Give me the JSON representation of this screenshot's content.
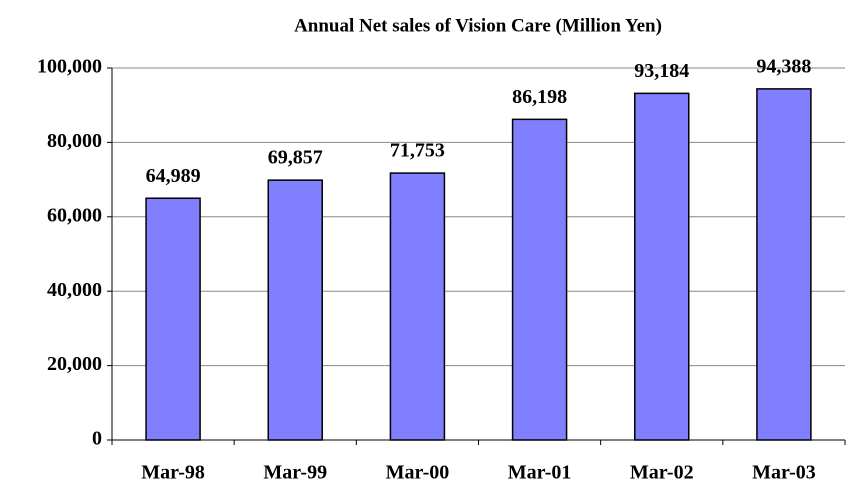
{
  "chart_data": {
    "type": "bar",
    "title": "Annual Net sales of Vision Care (Million Yen)",
    "categories": [
      "Mar-98",
      "Mar-99",
      "Mar-00",
      "Mar-01",
      "Mar-02",
      "Mar-03"
    ],
    "values": [
      64989,
      69857,
      71753,
      86198,
      93184,
      94388
    ],
    "value_labels": [
      "64,989",
      "69,857",
      "71,753",
      "86,198",
      "93,184",
      "94,388"
    ],
    "color": "#8080ff",
    "ylim": [
      0,
      100000
    ],
    "yticks": [
      0,
      {
        "value": 20000,
        "label": "20,000"
      },
      {
        "value": 40000,
        "label": "40,000"
      },
      {
        "value": 60000,
        "label": "60,000"
      },
      {
        "value": 80000,
        "label": "80,000"
      },
      {
        "value": 100000,
        "label": "100,000"
      }
    ],
    "grid": true
  }
}
